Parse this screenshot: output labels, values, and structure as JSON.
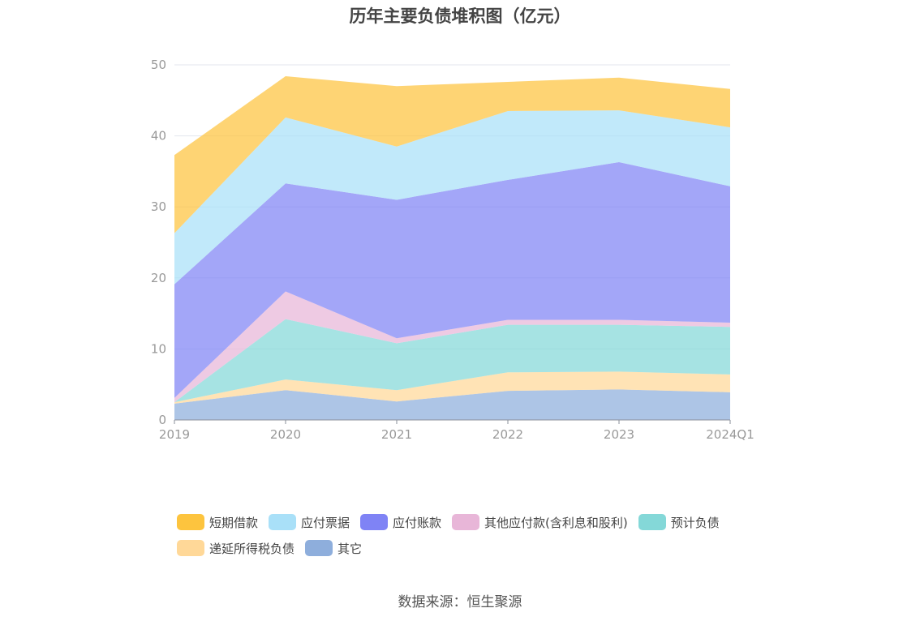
{
  "title": "历年主要负债堆积图（亿元）",
  "source": "数据来源：恒生聚源",
  "chart_data": {
    "type": "area",
    "stacked": true,
    "categories": [
      "2019",
      "2020",
      "2021",
      "2022",
      "2023",
      "2024Q1"
    ],
    "ylim": [
      0,
      50
    ],
    "yticks": [
      0,
      10,
      20,
      30,
      40,
      50
    ],
    "grid": true,
    "legend_position": "bottom",
    "series": [
      {
        "name": "其它",
        "color": "#8eaedc",
        "values": [
          2.3,
          4.2,
          2.6,
          4.1,
          4.3,
          3.9
        ]
      },
      {
        "name": "递延所得税负债",
        "color": "#ffd898",
        "values": [
          0.2,
          1.5,
          1.6,
          2.6,
          2.5,
          2.5
        ]
      },
      {
        "name": "预计负债",
        "color": "#84d8d8",
        "values": [
          0.0,
          8.5,
          6.6,
          6.7,
          6.6,
          6.7
        ]
      },
      {
        "name": "其他应付款(含利息和股利)",
        "color": "#e8b6d8",
        "values": [
          0.6,
          3.9,
          0.7,
          0.7,
          0.7,
          0.6
        ]
      },
      {
        "name": "应付账款",
        "color": "#7f83f5",
        "values": [
          16.0,
          15.2,
          19.5,
          19.7,
          22.2,
          19.2
        ]
      },
      {
        "name": "应付票据",
        "color": "#a9e0f8",
        "values": [
          7.2,
          9.3,
          7.5,
          9.7,
          7.3,
          8.3
        ]
      },
      {
        "name": "短期借款",
        "color": "#fdc43e",
        "values": [
          11.0,
          5.8,
          8.5,
          4.1,
          4.6,
          5.4
        ]
      }
    ]
  },
  "legend": {
    "row1": [
      {
        "label": "短期借款",
        "color": "#fdc43e"
      },
      {
        "label": "应付票据",
        "color": "#a9e0f8"
      },
      {
        "label": "应付账款",
        "color": "#7f83f5"
      },
      {
        "label": "其他应付款(含利息和股利)",
        "color": "#e8b6d8"
      },
      {
        "label": "预计负债",
        "color": "#84d8d8"
      }
    ],
    "row2": [
      {
        "label": "递延所得税负债",
        "color": "#ffd898"
      },
      {
        "label": "其它",
        "color": "#8eaedc"
      }
    ]
  }
}
